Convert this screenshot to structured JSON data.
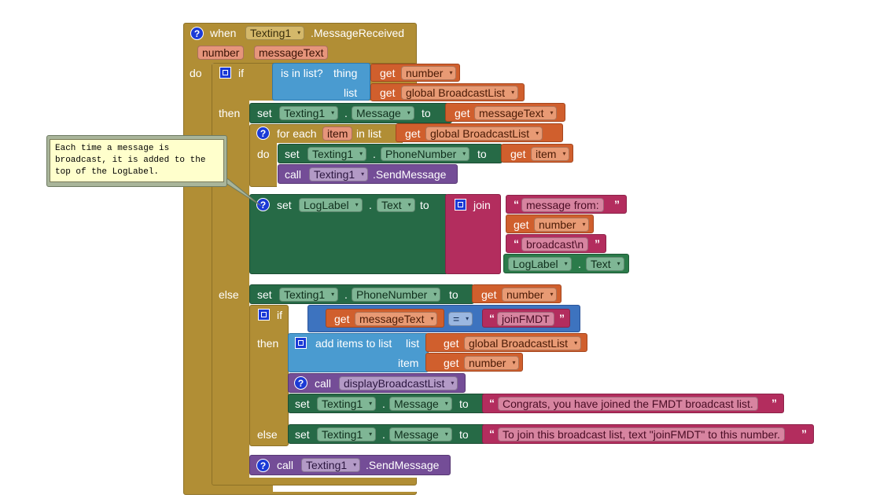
{
  "event": {
    "when": "when",
    "component": "Texting1",
    "event_name": ".MessageReceived",
    "param1": "number",
    "param2": "messageText",
    "do": "do"
  },
  "kw": {
    "if": "if",
    "then": "then",
    "else": "else",
    "do": "do",
    "set": "set",
    "to": "to",
    "get": "get",
    "call": "call",
    "dot": ".",
    "join": "join",
    "for_each": "for each",
    "in_list": "in list",
    "is_in_list": "is in list?",
    "thing": "thing",
    "list": "list",
    "item": "item",
    "add_items": "add items to list",
    "eq": "="
  },
  "values": {
    "texting1": "Texting1",
    "message": "Message",
    "phone_number": "PhoneNumber",
    "send_message": ".SendMessage",
    "loglabel": "LogLabel",
    "text": "Text",
    "number": "number",
    "message_text": "messageText",
    "global_list": "global BroadcastList",
    "item_var": "item",
    "display_broadcast": "displayBroadcastList",
    "str_message_from": "message from:",
    "str_broadcast": "broadcast\\n",
    "str_join": "joinFMDT",
    "str_congrats": "Congrats, you have joined the FMDT broadcast list.",
    "str_to_join": "To join this broadcast list, text \"joinFMDT\" to this number."
  },
  "comment": {
    "text": "Each time a message is broadcast, it is added to the top of the LogLabel."
  },
  "icons": {
    "help": "?",
    "mutator": "mutator-icon",
    "dropdown": "▾"
  },
  "colors": {
    "event": "#b18e35",
    "control": "#4a9bd0",
    "variable": "#d05f2d",
    "setter": "#266a46",
    "procedure": "#744d97",
    "text": "#b32d5e"
  }
}
